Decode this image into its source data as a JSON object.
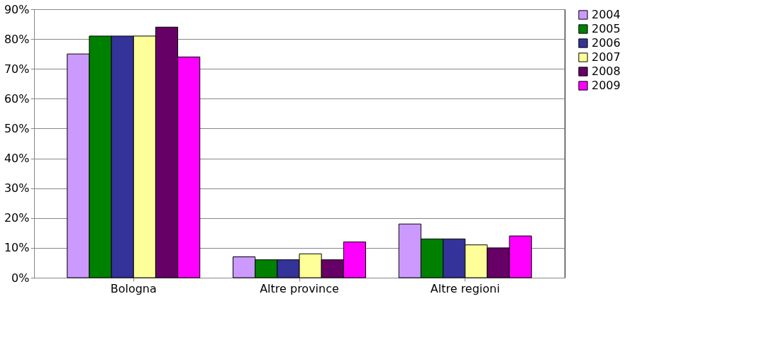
{
  "chart_data": {
    "type": "bar",
    "categories": [
      "Bologna",
      "Altre province",
      "Altre regioni"
    ],
    "series": [
      {
        "name": "2004",
        "color": "#cc99ff",
        "values": [
          75,
          7,
          18
        ]
      },
      {
        "name": "2005",
        "color": "#008000",
        "values": [
          81,
          6,
          13
        ]
      },
      {
        "name": "2006",
        "color": "#333399",
        "values": [
          81,
          6,
          13
        ]
      },
      {
        "name": "2007",
        "color": "#ffff99",
        "values": [
          81,
          8,
          11
        ]
      },
      {
        "name": "2008",
        "color": "#660066",
        "values": [
          84,
          6,
          10
        ]
      },
      {
        "name": "2009",
        "color": "#ff00ff",
        "values": [
          74,
          12,
          14
        ]
      }
    ],
    "ylim": [
      0,
      90
    ],
    "yticks": [
      {
        "value": 0,
        "label": "0%"
      },
      {
        "value": 10,
        "label": "10%"
      },
      {
        "value": 20,
        "label": "20%"
      },
      {
        "value": 30,
        "label": "30%"
      },
      {
        "value": 40,
        "label": "40%"
      },
      {
        "value": 50,
        "label": "50%"
      },
      {
        "value": 60,
        "label": "60%"
      },
      {
        "value": 70,
        "label": "70%"
      },
      {
        "value": 80,
        "label": "80%"
      },
      {
        "value": 90,
        "label": "90%"
      }
    ],
    "grid": "y",
    "legend": "right"
  }
}
